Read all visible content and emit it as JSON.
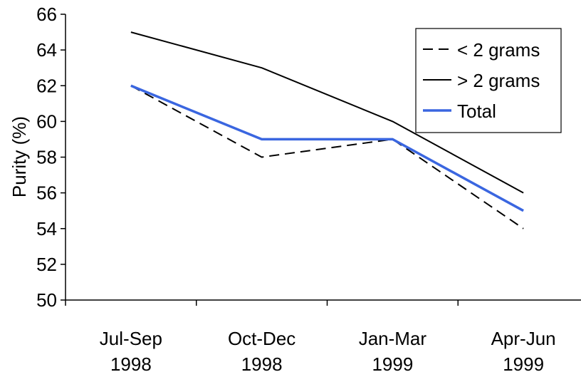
{
  "chart_data": {
    "type": "line",
    "title": "",
    "xlabel": "",
    "ylabel": "Purity (%)",
    "categories": [
      [
        "Jul-Sep",
        "1998"
      ],
      [
        "Oct-Dec",
        "1998"
      ],
      [
        "Jan-Mar",
        "1999"
      ],
      [
        "Apr-Jun",
        "1999"
      ]
    ],
    "ylim": [
      50,
      66
    ],
    "yticks": [
      50,
      52,
      54,
      56,
      58,
      60,
      62,
      64,
      66
    ],
    "grid": false,
    "legend_position": "top-right",
    "series": [
      {
        "name": "< 2 grams",
        "values": [
          62,
          58,
          59,
          54
        ],
        "color": "#000000",
        "style": "dashed"
      },
      {
        "name": "> 2 grams",
        "values": [
          65,
          63,
          60,
          56
        ],
        "color": "#000000",
        "style": "solid"
      },
      {
        "name": "Total",
        "values": [
          62,
          59,
          59,
          55
        ],
        "color": "#3a66e0",
        "style": "solid"
      }
    ]
  }
}
